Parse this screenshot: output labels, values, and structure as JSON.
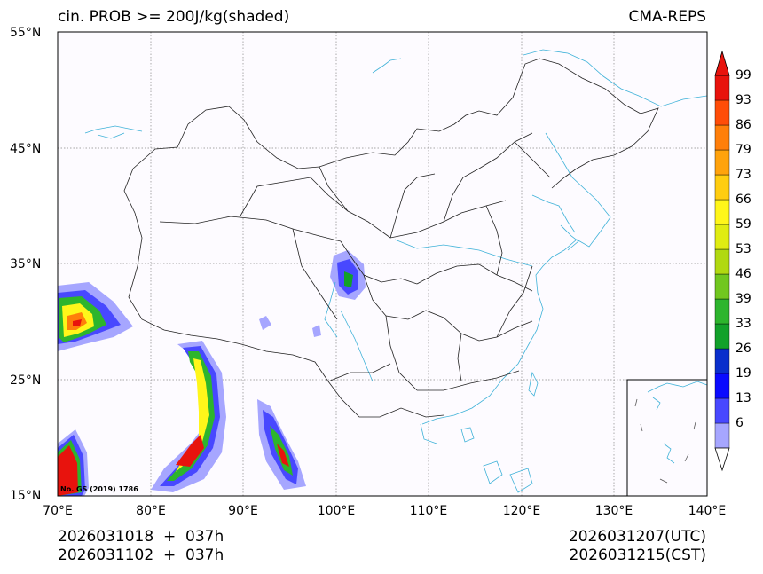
{
  "header": {
    "title_left": "cin. PROB >= 200J/kg(shaded)",
    "title_right": "CMA-REPS"
  },
  "axes": {
    "lat_labels": [
      "55°N",
      "45°N",
      "35°N",
      "25°N",
      "15°N"
    ],
    "lon_labels": [
      "70°E",
      "80°E",
      "90°E",
      "100°E",
      "110°E",
      "120°E",
      "130°E",
      "140°E"
    ]
  },
  "colorbar": {
    "levels": [
      "6",
      "13",
      "19",
      "26",
      "33",
      "39",
      "46",
      "53",
      "59",
      "66",
      "73",
      "79",
      "86",
      "93",
      "99"
    ],
    "colors": [
      "#a6a6ff",
      "#4848ff",
      "#0a0aff",
      "#0a2fcc",
      "#12a12a",
      "#2db52d",
      "#71c71f",
      "#b1d911",
      "#e0ec12",
      "#fff61a",
      "#ffcd10",
      "#ffa30c",
      "#ff7f0a",
      "#ff4d08",
      "#e8130d"
    ],
    "over_color": "#e8130d",
    "under_color": "#ffffff"
  },
  "map": {
    "watermark": "No. GS (2019) 1786"
  },
  "footer": {
    "left_line1": "2026031018  +  037h",
    "left_line2": "2026031102  +  037h",
    "right_line1": "2026031207(UTC)",
    "right_line2": "2026031215(CST)"
  }
}
